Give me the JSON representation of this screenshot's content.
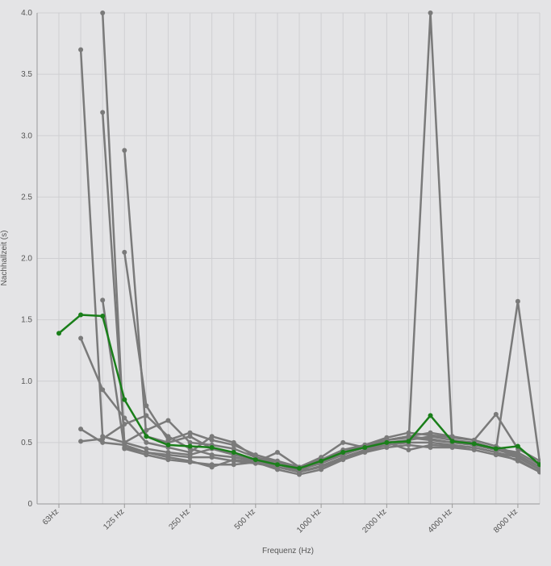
{
  "chart_data": {
    "type": "line",
    "x_label": "Frequenz (Hz)",
    "y_label": "Nachhallzeit (s)",
    "categories": [
      "63Hz",
      null,
      null,
      "125 Hz",
      null,
      null,
      "250 Hz",
      null,
      null,
      "500 Hz",
      null,
      null,
      "1000 Hz",
      null,
      null,
      "2000 Hz",
      null,
      null,
      "4000 Hz",
      null,
      null,
      "8000 Hz",
      null
    ],
    "ylim": [
      0,
      4
    ],
    "yticks": [
      0,
      0.5,
      {
        "value": 1,
        "label": "1.0"
      },
      1.5,
      {
        "value": 2,
        "label": "2.0"
      },
      2.5,
      {
        "value": 3,
        "label": "3.0"
      },
      3.5,
      {
        "value": 4,
        "label": "4.0"
      }
    ],
    "grid": true,
    "series": [
      {
        "color": "#7a7a7a",
        "values": [
          null,
          3.7,
          0.55,
          0.5,
          0.45,
          0.42,
          0.4,
          0.45,
          0.4,
          0.36,
          0.3,
          0.27,
          0.3,
          0.38,
          0.44,
          0.5,
          0.52,
          0.55,
          0.52,
          0.5,
          0.45,
          0.38,
          0.28
        ]
      },
      {
        "color": "#7a7a7a",
        "values": [
          null,
          null,
          4.0,
          0.46,
          0.42,
          0.4,
          0.38,
          0.38,
          0.35,
          0.33,
          0.3,
          0.26,
          0.3,
          0.37,
          0.43,
          0.48,
          0.5,
          4.0,
          0.5,
          0.48,
          0.44,
          0.4,
          0.3
        ]
      },
      {
        "color": "#7a7a7a",
        "values": [
          null,
          null,
          3.19,
          0.5,
          0.6,
          0.68,
          0.5,
          0.48,
          0.45,
          0.38,
          0.32,
          0.28,
          0.33,
          0.4,
          0.46,
          0.52,
          0.55,
          0.58,
          0.55,
          0.52,
          0.47,
          0.4,
          0.3
        ]
      },
      {
        "color": "#7a7a7a",
        "values": [
          null,
          null,
          null,
          2.88,
          0.55,
          0.5,
          0.55,
          0.45,
          0.42,
          0.36,
          0.32,
          0.29,
          0.34,
          0.42,
          0.47,
          0.52,
          0.54,
          0.52,
          0.5,
          0.5,
          0.45,
          0.42,
          0.32
        ]
      },
      {
        "color": "#7a7a7a",
        "values": [
          null,
          null,
          null,
          2.05,
          0.8,
          0.52,
          0.58,
          0.52,
          0.48,
          0.4,
          0.35,
          0.3,
          0.36,
          0.44,
          0.48,
          0.54,
          0.58,
          0.56,
          0.54,
          0.52,
          0.73,
          0.45,
          0.35
        ]
      },
      {
        "color": "#7a7a7a",
        "values": [
          null,
          1.35,
          0.93,
          0.7,
          0.5,
          0.46,
          0.42,
          0.55,
          0.5,
          0.38,
          0.34,
          0.3,
          0.35,
          0.42,
          0.48,
          0.52,
          0.55,
          0.53,
          0.5,
          0.48,
          0.44,
          1.65,
          0.34
        ]
      },
      {
        "color": "#7a7a7a",
        "values": [
          null,
          0.61,
          0.5,
          0.48,
          0.42,
          0.38,
          0.35,
          0.3,
          0.36,
          0.34,
          0.28,
          0.24,
          0.28,
          0.36,
          0.42,
          0.46,
          0.48,
          0.46,
          0.46,
          0.44,
          0.4,
          0.36,
          0.26
        ]
      },
      {
        "color": "#7a7a7a",
        "values": [
          null,
          0.51,
          0.53,
          0.65,
          0.72,
          0.55,
          0.45,
          0.4,
          0.38,
          0.35,
          0.3,
          0.26,
          0.31,
          0.38,
          0.44,
          0.48,
          0.5,
          0.5,
          0.48,
          0.46,
          0.42,
          0.38,
          0.28
        ]
      },
      {
        "color": "#7a7a7a",
        "values": [
          null,
          null,
          1.66,
          0.45,
          0.4,
          0.36,
          0.34,
          0.32,
          0.32,
          0.34,
          0.42,
          0.3,
          0.38,
          0.5,
          0.46,
          0.5,
          0.44,
          0.48,
          0.47,
          0.46,
          0.42,
          0.35,
          0.26
        ]
      },
      {
        "color": "#1a7f1a",
        "values": [
          1.39,
          1.54,
          1.53,
          0.85,
          0.55,
          0.48,
          0.47,
          0.46,
          0.42,
          0.36,
          0.32,
          0.29,
          0.35,
          0.42,
          0.46,
          0.5,
          0.51,
          0.72,
          0.51,
          0.49,
          0.45,
          0.47,
          0.32
        ]
      }
    ]
  }
}
